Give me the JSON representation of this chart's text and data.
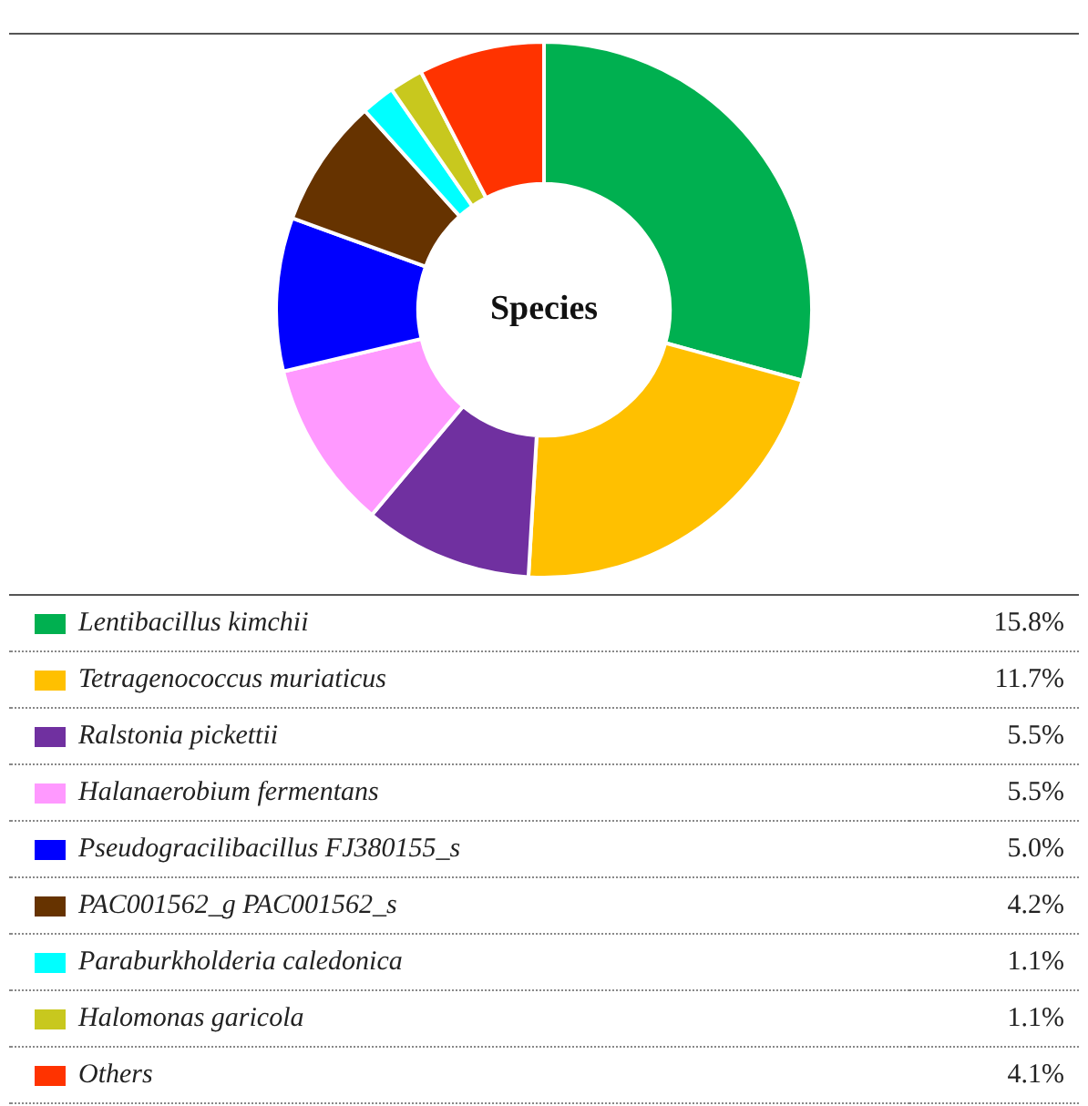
{
  "chart_data": {
    "type": "donut",
    "title": "Species",
    "categories": [
      "Lentibacillus kimchii",
      "Tetragenococcus muriaticus",
      "Ralstonia pickettii",
      "Halanaerobium fermentans",
      "Pseudogracilibacillus FJ380155_s",
      "PAC001562_g PAC001562_s",
      "Paraburkholderia caledonica",
      "Halomonas garicola",
      "Others"
    ],
    "values": [
      15.8,
      11.7,
      5.5,
      5.5,
      5.0,
      4.2,
      1.1,
      1.1,
      4.1
    ],
    "value_labels": [
      "15.8%",
      "11.7%",
      "5.5%",
      "5.5%",
      "5.0%",
      "4.2%",
      "1.1%",
      "1.1%",
      "4.1%"
    ],
    "colors": [
      "#00b050",
      "#ffc000",
      "#7030a0",
      "#ff99ff",
      "#0000ff",
      "#663300",
      "#00ffff",
      "#c8c81e",
      "#ff3300"
    ],
    "legend": "bottom"
  }
}
